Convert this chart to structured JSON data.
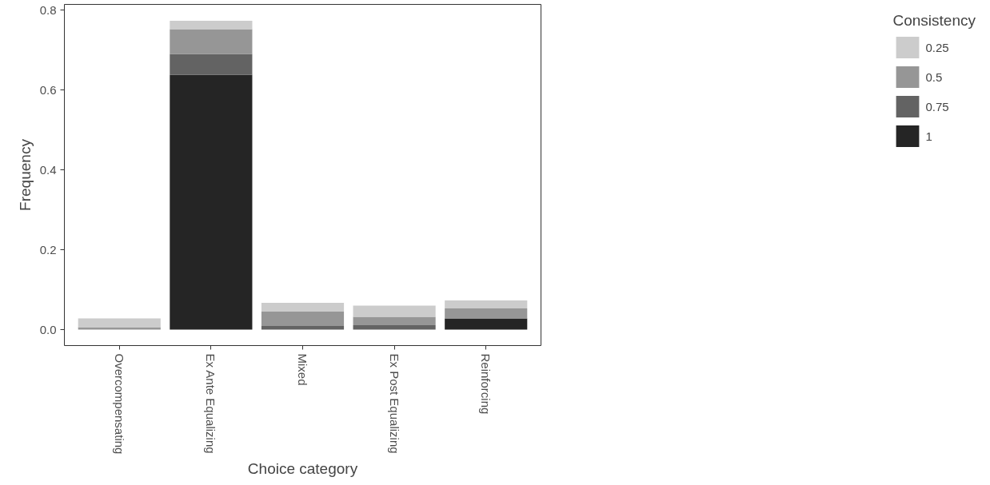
{
  "chart_data": {
    "type": "bar",
    "stacked": true,
    "xlabel": "Choice category",
    "ylabel": "Frequency",
    "legend_title": "Consistency",
    "categories": [
      "Overcompensating",
      "Ex Ante Equalizing",
      "Mixed",
      "Ex Post Equalizing",
      "Reinforcing"
    ],
    "series": [
      {
        "name": "1",
        "color": "#252525",
        "values": [
          0,
          0.639,
          0,
          0,
          0.028
        ]
      },
      {
        "name": "0.75",
        "color": "#636363",
        "values": [
          0,
          0.052,
          0.009,
          0.011,
          0
        ]
      },
      {
        "name": "0.5",
        "color": "#969696",
        "values": [
          0.006,
          0.062,
          0.036,
          0.021,
          0.025
        ]
      },
      {
        "name": "0.25",
        "color": "#cccccc",
        "values": [
          0.022,
          0.021,
          0.022,
          0.028,
          0.02
        ]
      }
    ],
    "ylim": [
      -0.04,
      0.815
    ],
    "yticks": [
      {
        "value": 0,
        "label": "0.0"
      },
      0.2,
      0.4,
      0.6,
      0.8
    ],
    "grid": false,
    "legend": "right"
  }
}
